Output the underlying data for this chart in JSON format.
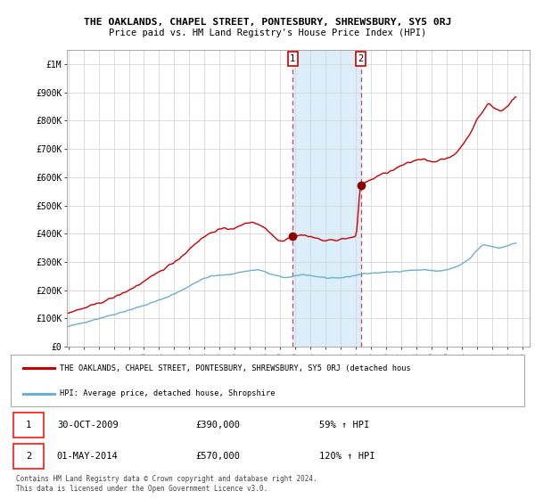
{
  "title": "THE OAKLANDS, CHAPEL STREET, PONTESBURY, SHREWSBURY, SY5 0RJ",
  "subtitle": "Price paid vs. HM Land Registry's House Price Index (HPI)",
  "sale1_date": "30-OCT-2009",
  "sale1_price": 390000,
  "sale1_pct": "59%",
  "sale2_date": "01-MAY-2014",
  "sale2_price": 570000,
  "sale2_pct": "120%",
  "legend_line1": "THE OAKLANDS, CHAPEL STREET, PONTESBURY, SHREWSBURY, SY5 0RJ (detached hous",
  "legend_line2": "HPI: Average price, detached house, Shropshire",
  "footer": "Contains HM Land Registry data © Crown copyright and database right 2024.\nThis data is licensed under the Open Government Licence v3.0.",
  "hpi_color": "#6baed6",
  "price_color": "#cc0000",
  "highlight_color": "#dceef9",
  "ylim": [
    0,
    1050000
  ],
  "yticks": [
    0,
    100000,
    200000,
    300000,
    400000,
    500000,
    600000,
    700000,
    800000,
    900000,
    1000000
  ],
  "ytick_labels": [
    "£0",
    "£100K",
    "£200K",
    "£300K",
    "£400K",
    "£500K",
    "£600K",
    "£700K",
    "£800K",
    "£900K",
    "£1M"
  ],
  "xlim_start": 1994.9,
  "xlim_end": 2025.5,
  "xticks": [
    1995,
    1996,
    1997,
    1998,
    1999,
    2000,
    2001,
    2002,
    2003,
    2004,
    2005,
    2006,
    2007,
    2008,
    2009,
    2010,
    2011,
    2012,
    2013,
    2014,
    2015,
    2016,
    2017,
    2018,
    2019,
    2020,
    2021,
    2022,
    2023,
    2024,
    2025
  ],
  "sale1_x": 2009.833,
  "sale2_x": 2014.333,
  "sale1_y": 390000,
  "sale2_y": 570000
}
